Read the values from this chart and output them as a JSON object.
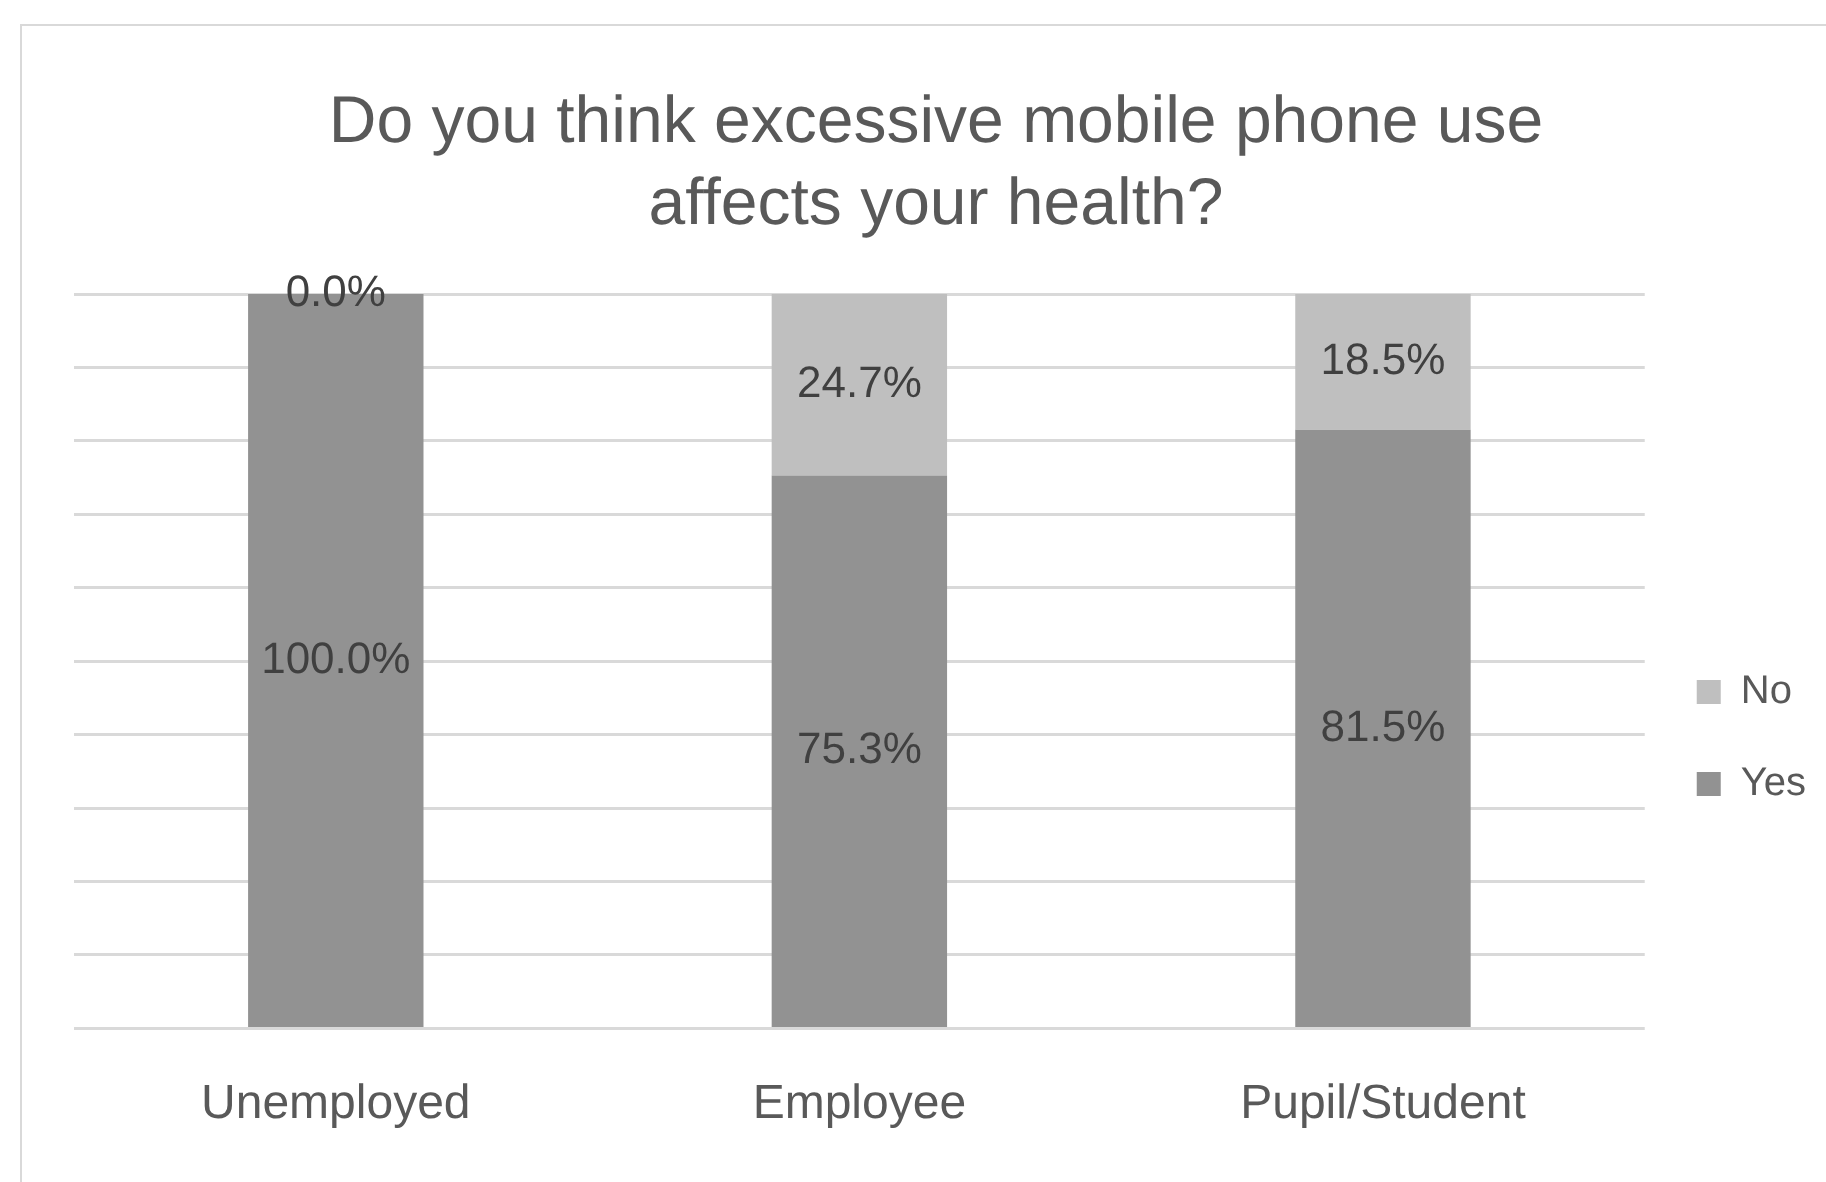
{
  "chart_data": {
    "type": "bar",
    "title": "Do you think excessive mobile phone use affects your health?",
    "categories": [
      "Unemployed",
      "Employee",
      "Pupil/Student"
    ],
    "stacked": true,
    "series": [
      {
        "name": "Yes",
        "color": "#929292",
        "values": [
          100,
          75.3,
          81.5
        ],
        "value_labels": [
          "100.0%",
          "75.3%",
          "81.5%"
        ]
      },
      {
        "name": "No",
        "color": "#bfbfbf",
        "values": [
          0,
          24.7,
          18.5
        ],
        "value_labels": [
          "0.0%",
          "24.7%",
          "18.5%"
        ]
      }
    ],
    "ylim": [
      0,
      100
    ],
    "yticks": [
      {
        "value": 0,
        "label": null
      },
      {
        "value": 10,
        "label": null
      },
      {
        "value": 20,
        "label": null
      },
      {
        "value": 30,
        "label": null
      },
      {
        "value": 40,
        "label": null
      },
      {
        "value": 50,
        "label": null
      },
      {
        "value": 60,
        "label": null
      },
      {
        "value": 70,
        "label": null
      },
      {
        "value": 80,
        "label": null
      },
      {
        "value": 90,
        "label": null
      },
      {
        "value": 100,
        "label": null
      }
    ],
    "tick_labels": "x",
    "grid": "y",
    "legend": "right"
  }
}
